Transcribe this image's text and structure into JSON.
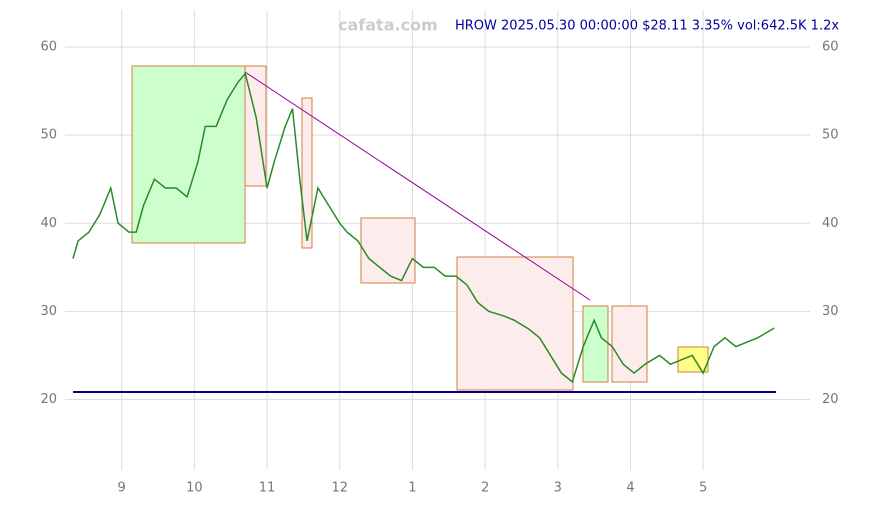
{
  "chart_data": {
    "type": "line",
    "title": "HROW 2025.05.30 00:00:00 $28.11 3.35% vol:642.5K 1.2x",
    "watermark": "cafata.com",
    "x": [
      8.33,
      8.4,
      8.55,
      8.7,
      8.85,
      8.95,
      9.1,
      9.2,
      9.3,
      9.45,
      9.6,
      9.75,
      9.9,
      10.05,
      10.15,
      10.3,
      10.45,
      10.6,
      10.7,
      10.85,
      11.0,
      11.1,
      11.25,
      11.35,
      11.45,
      11.55,
      11.7,
      11.85,
      12.0,
      12.1,
      12.25,
      12.4,
      12.55,
      12.7,
      12.85,
      13.0,
      13.15,
      13.3,
      13.45,
      13.6,
      13.75,
      13.9,
      14.05,
      14.25,
      14.4,
      14.6,
      14.75,
      14.9,
      15.05,
      15.2,
      15.35,
      15.5,
      15.6,
      15.75,
      15.9,
      16.05,
      16.2,
      16.4,
      16.55,
      16.7,
      16.85,
      17.0,
      17.15,
      17.3,
      17.45,
      17.6,
      17.75,
      17.98
    ],
    "series": [
      {
        "color": "#2a8a2a",
        "values": [
          36,
          38,
          39,
          41,
          44,
          40,
          39,
          39,
          42,
          45,
          44,
          44,
          43,
          47,
          51,
          51,
          54,
          56,
          57,
          52,
          44,
          47,
          51,
          53,
          45,
          38,
          44,
          42,
          40,
          39,
          38,
          36,
          35,
          34,
          33.5,
          36,
          35,
          35,
          34,
          34,
          33,
          31,
          30,
          29.5,
          29,
          28,
          27,
          25,
          23,
          22,
          26,
          29,
          27,
          26,
          24,
          23,
          24,
          25,
          24,
          24.5,
          25,
          23,
          26,
          27,
          26,
          26.5,
          27,
          28.11
        ]
      }
    ],
    "xlim": [
      8.22,
      18.47
    ],
    "xticks": [
      9,
      10,
      11,
      12,
      {
        "value": 13,
        "label": "1"
      },
      {
        "value": 14,
        "label": "2"
      },
      {
        "value": 15,
        "label": "3"
      },
      {
        "value": 16,
        "label": "4"
      },
      {
        "value": 17,
        "label": "5"
      }
    ],
    "ylim": [
      12,
      64.2
    ],
    "yticks": [
      20,
      30,
      40,
      50,
      60
    ],
    "grid": true
  }
}
